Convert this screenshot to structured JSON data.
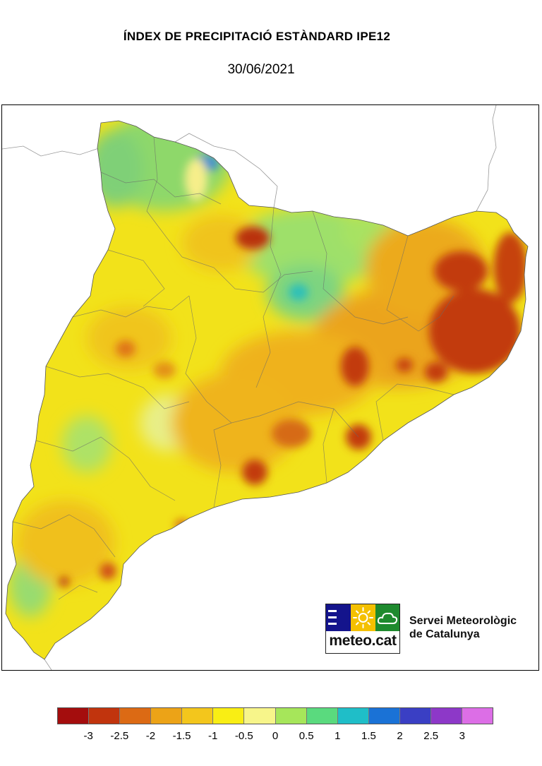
{
  "title": "ÍNDEX DE PRECIPITACIÓ ESTÀNDARD IPE12",
  "date": "30/06/2021",
  "logo": {
    "wordmark": "meteo.cat"
  },
  "organization": {
    "line1": "Servei Meteorològic",
    "line2": "de Catalunya"
  },
  "map": {
    "region": "Catalunya",
    "base_color": "#f2e21a",
    "sea_color": "#ffffff"
  },
  "legend": {
    "colors": [
      "#a40d0d",
      "#c1340d",
      "#dc6a14",
      "#eca317",
      "#f3c61c",
      "#f9ee14",
      "#f7f58a",
      "#a6e65a",
      "#5ada7e",
      "#1fbec8",
      "#1a72d6",
      "#3a3fc4",
      "#8d38c8",
      "#dc6ee6"
    ],
    "ticks": [
      "-3",
      "-2.5",
      "-2",
      "-1.5",
      "-1",
      "-0.5",
      "0",
      "0.5",
      "1",
      "1.5",
      "2",
      "2.5",
      "3"
    ]
  }
}
